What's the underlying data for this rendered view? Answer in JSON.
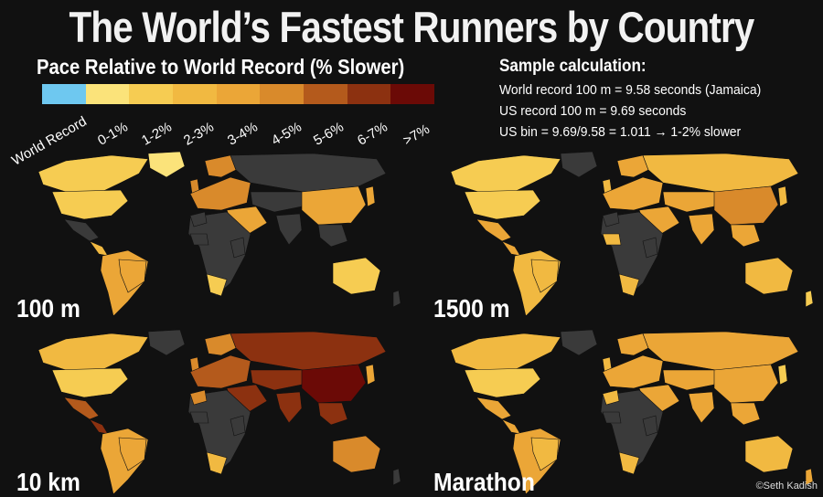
{
  "title": "The World’s Fastest Runners by Country",
  "legend": {
    "title": "Pace Relative to World Record (% Slower)",
    "bins": [
      {
        "label": "World Record",
        "color": "#6ec8f0"
      },
      {
        "label": "0-1%",
        "color": "#fbe37a"
      },
      {
        "label": "1-2%",
        "color": "#f6cc52"
      },
      {
        "label": "2-3%",
        "color": "#f1b941"
      },
      {
        "label": "3-4%",
        "color": "#eba637"
      },
      {
        "label": "4-5%",
        "color": "#d98a2b"
      },
      {
        "label": "5-6%",
        "color": "#b45a1c"
      },
      {
        "label": "6-7%",
        "color": "#8c3110"
      },
      {
        "label": ">7%",
        "color": "#6b0a06"
      }
    ],
    "nodata_color": "#3a3a3a"
  },
  "sample": {
    "heading": "Sample calculation:",
    "line1": "World record 100 m = 9.58 seconds (Jamaica)",
    "line2": "US record 100 m = 9.69 seconds",
    "line3": "US bin = 9.69/9.58 = 1.011 → 1-2% slower"
  },
  "panels": [
    {
      "label": "100 m",
      "regions": {
        "na": 2,
        "us": 2,
        "greenland": 1,
        "mexico": 0,
        "central": 3,
        "south_am": 4,
        "brazil": 4,
        "europe": 5,
        "uk": 5,
        "scand": 5,
        "russia": 0,
        "africa": 0,
        "west_africa": 0,
        "south_africa": 2,
        "mideast": 4,
        "central_asia": 0,
        "china": 4,
        "india": 0,
        "se_asia": 0,
        "japan": 4,
        "australia": 2,
        "nz": 0
      }
    },
    {
      "label": "1500 m",
      "regions": {
        "na": 2,
        "us": 2,
        "greenland": 0,
        "mexico": 4,
        "central": 4,
        "south_am": 3,
        "brazil": 3,
        "europe": 4,
        "uk": 3,
        "scand": 4,
        "russia": 3,
        "africa": 0,
        "west_africa": 3,
        "east_africa": 0,
        "morocco": 0,
        "south_africa": 3,
        "mideast": 4,
        "central_asia": 4,
        "china": 5,
        "india": 4,
        "se_asia": 4,
        "japan": 3,
        "australia": 3,
        "nz": 2
      }
    },
    {
      "label": "10 km",
      "regions": {
        "na": 3,
        "us": 2,
        "greenland": 0,
        "mexico": 6,
        "central": 7,
        "south_am": 4,
        "brazil": 4,
        "europe": 6,
        "uk": 5,
        "scand": 5,
        "russia": 7,
        "africa": 0,
        "east_africa": 0,
        "morocco": 5,
        "south_africa": 3,
        "mideast": 7,
        "central_asia": 7,
        "china": 8,
        "india": 7,
        "se_asia": 7,
        "japan": 4,
        "australia": 5,
        "nz": 0
      }
    },
    {
      "label": "Marathon",
      "regions": {
        "na": 3,
        "us": 2,
        "greenland": 0,
        "mexico": 4,
        "central": 4,
        "south_am": 4,
        "brazil": 3,
        "europe": 4,
        "uk": 3,
        "scand": 4,
        "russia": 4,
        "africa": 0,
        "east_africa": 0,
        "morocco": 3,
        "south_africa": 3,
        "mideast": 4,
        "central_asia": 4,
        "china": 4,
        "india": 4,
        "se_asia": 4,
        "japan": 2,
        "australia": 3,
        "nz": 4
      }
    }
  ],
  "credit": "©Seth Kadish"
}
